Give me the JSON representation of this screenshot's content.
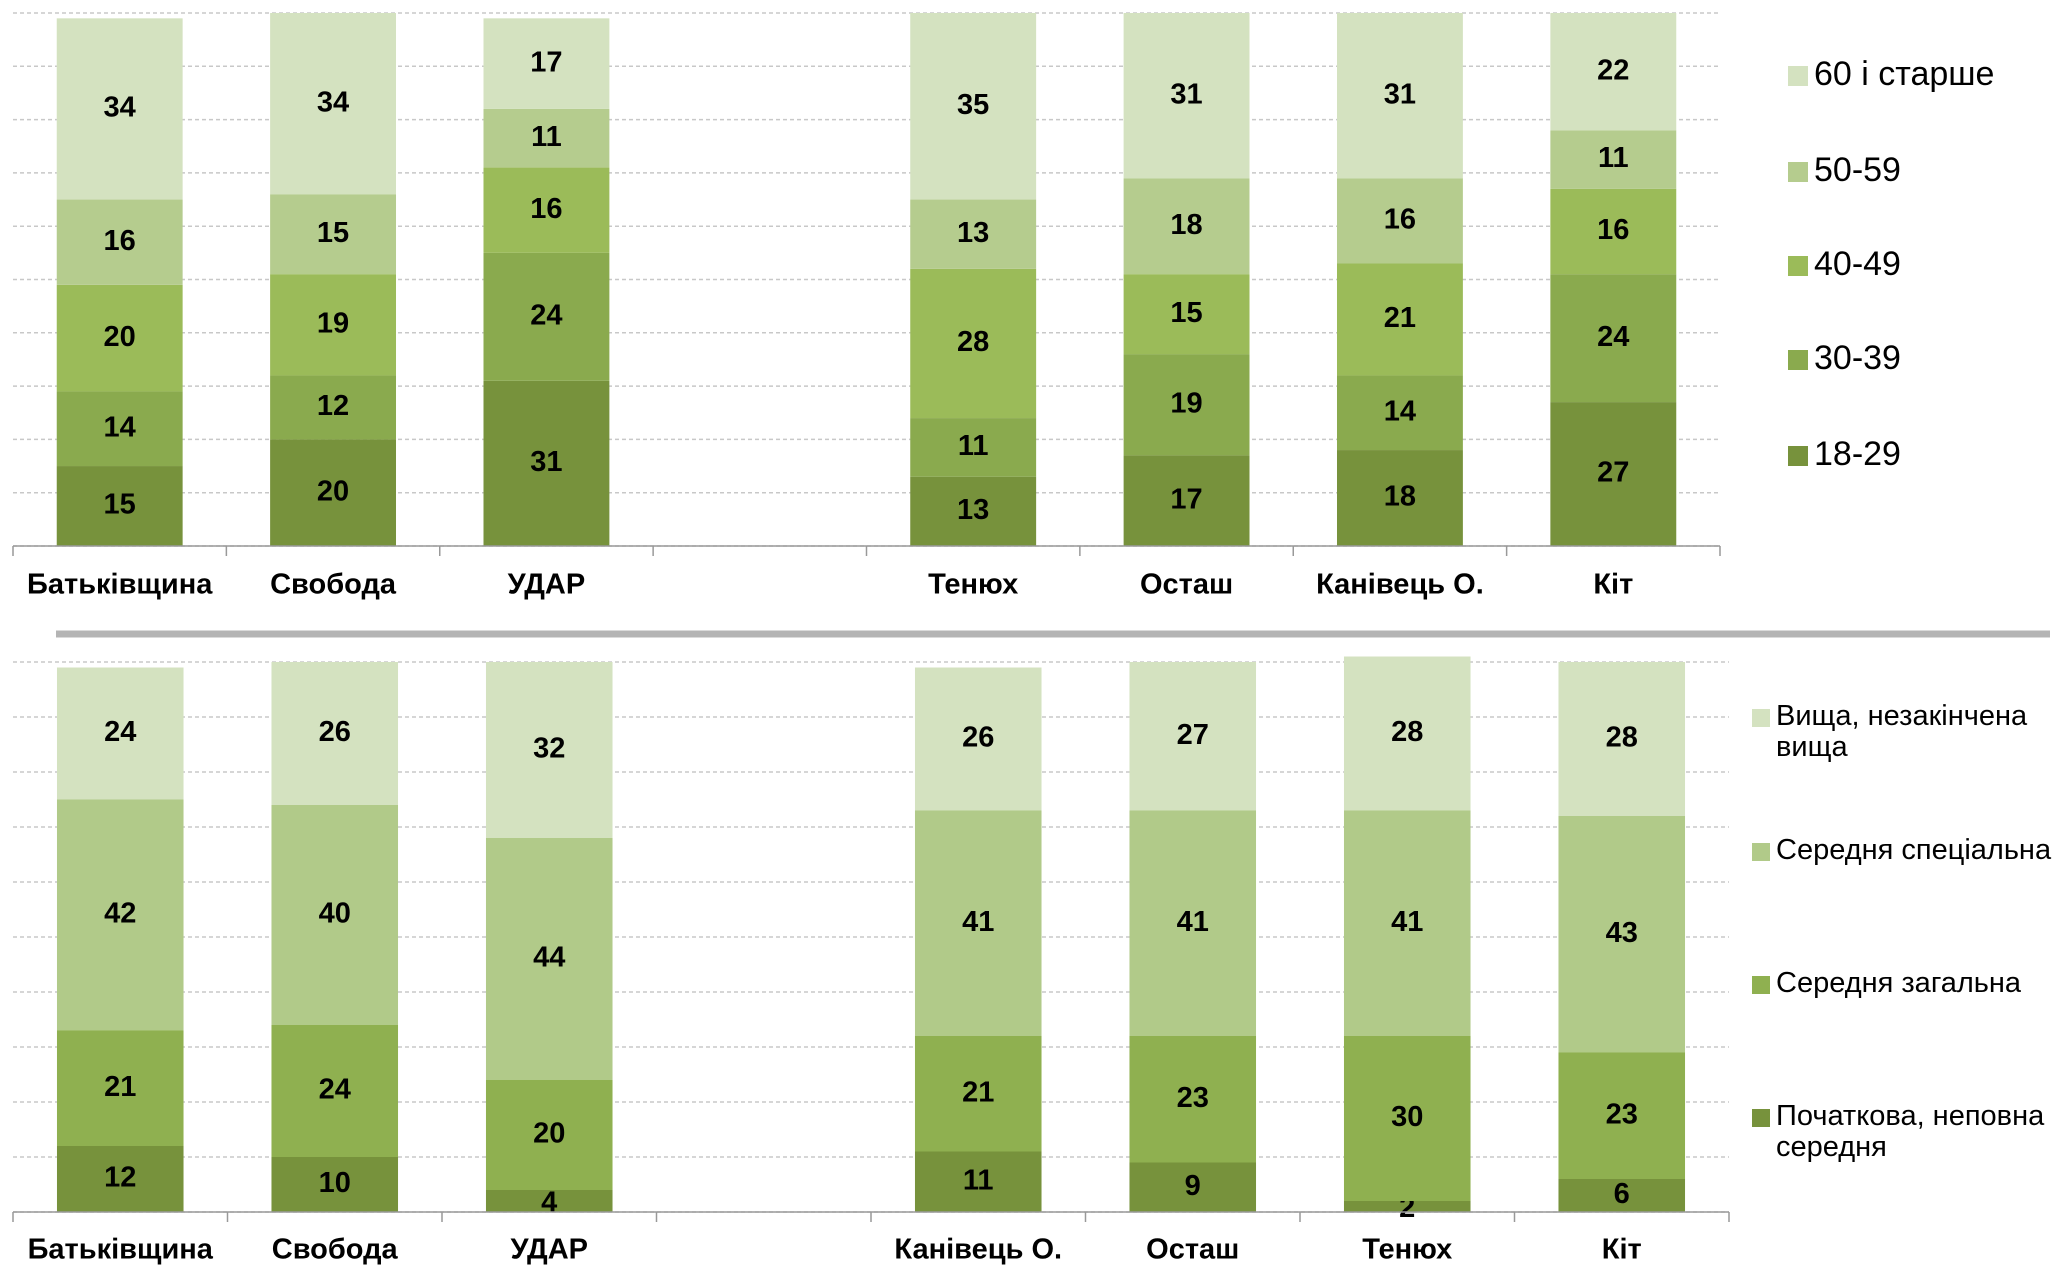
{
  "chart_data": [
    {
      "type": "stacked_bar",
      "categories": [
        "Батьківщина",
        "Свобода",
        "УДАР",
        null,
        "Тенюх",
        "Осташ",
        "Канівець О.",
        "Кіт"
      ],
      "series": [
        {
          "name": "18-29",
          "color": "#77923c",
          "values": [
            15,
            20,
            31,
            null,
            13,
            17,
            18,
            27
          ]
        },
        {
          "name": "30-39",
          "color": "#8aaa4e",
          "values": [
            14,
            12,
            24,
            null,
            11,
            19,
            14,
            24
          ]
        },
        {
          "name": "40-49",
          "color": "#9bbb59",
          "values": [
            20,
            19,
            16,
            null,
            28,
            15,
            21,
            16
          ]
        },
        {
          "name": "50-59",
          "color": "#b5cc8e",
          "values": [
            16,
            15,
            11,
            null,
            13,
            18,
            16,
            11
          ]
        },
        {
          "name": "60 і старше",
          "color": "#d4e2c0",
          "values": [
            34,
            34,
            17,
            null,
            35,
            31,
            31,
            22
          ]
        }
      ],
      "ylim": [
        0,
        100
      ],
      "yticks": [
        0,
        10,
        20,
        30,
        40,
        50,
        60,
        70,
        80,
        90,
        100
      ],
      "grid": true,
      "legend": "right"
    },
    {
      "type": "stacked_bar",
      "categories": [
        "Батьківщина",
        "Свобода",
        "УДАР",
        null,
        "Канівець О.",
        "Осташ",
        "Тенюх",
        "Кіт"
      ],
      "series": [
        {
          "name": "Початкова, неповна середня",
          "color": "#77923c",
          "values": [
            12,
            10,
            4,
            null,
            11,
            9,
            2,
            6
          ]
        },
        {
          "name": "Середня загальна",
          "color": "#8fb050",
          "values": [
            21,
            24,
            20,
            null,
            21,
            23,
            30,
            23
          ]
        },
        {
          "name": "Середня спеціальна",
          "color": "#b1ca89",
          "values": [
            42,
            40,
            44,
            null,
            41,
            41,
            41,
            43
          ]
        },
        {
          "name": "Вища, незакінчена вища",
          "color": "#d4e2c0",
          "values": [
            24,
            26,
            32,
            null,
            26,
            27,
            28,
            28
          ]
        }
      ],
      "ylim": [
        0,
        100
      ],
      "yticks": [
        0,
        10,
        20,
        30,
        40,
        50,
        60,
        70,
        80,
        90,
        100
      ],
      "grid": true,
      "legend": "right"
    }
  ]
}
